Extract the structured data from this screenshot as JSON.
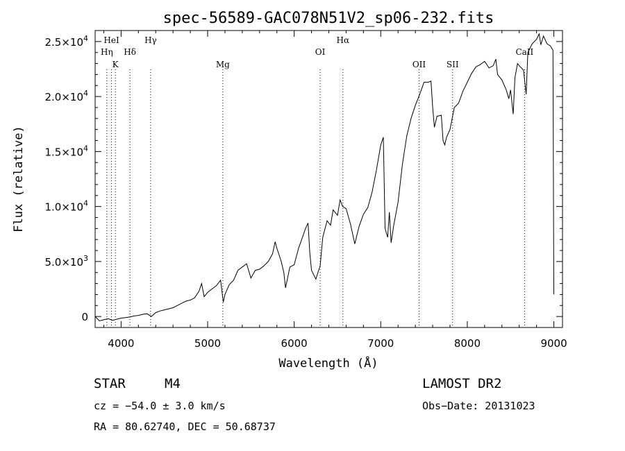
{
  "chart_data": {
    "type": "line",
    "title": "spec-56589-GAC078N51V2_sp06-232.fits",
    "xlabel": "Wavelength (Å)",
    "ylabel": "Flux (relative)",
    "xlim": [
      3700,
      9100
    ],
    "ylim": [
      -1000,
      26000
    ],
    "x_ticks": [
      {
        "value": 4000,
        "label": "4000"
      },
      {
        "value": 5000,
        "label": "5000"
      },
      {
        "value": 6000,
        "label": "6000"
      },
      {
        "value": 7000,
        "label": "7000"
      },
      {
        "value": 8000,
        "label": "8000"
      },
      {
        "value": 9000,
        "label": "9000"
      }
    ],
    "y_ticks": [
      {
        "value": 0,
        "mant": "0",
        "exp": ""
      },
      {
        "value": 5000,
        "mant": "5.0×10",
        "exp": "3"
      },
      {
        "value": 10000,
        "mant": "1.0×10",
        "exp": "4"
      },
      {
        "value": 15000,
        "mant": "1.5×10",
        "exp": "4"
      },
      {
        "value": 20000,
        "mant": "2.0×10",
        "exp": "4"
      },
      {
        "value": 25000,
        "mant": "2.5×10",
        "exp": "4"
      }
    ],
    "grid": false,
    "series": [
      {
        "color": "#000000",
        "points": [
          [
            3700,
            0
          ],
          [
            3750,
            -400
          ],
          [
            3800,
            -300
          ],
          [
            3850,
            -200
          ],
          [
            3900,
            -350
          ],
          [
            3950,
            -250
          ],
          [
            4000,
            -150
          ],
          [
            4050,
            -100
          ],
          [
            4100,
            -50
          ],
          [
            4150,
            50
          ],
          [
            4200,
            100
          ],
          [
            4250,
            200
          ],
          [
            4300,
            250
          ],
          [
            4350,
            0
          ],
          [
            4400,
            350
          ],
          [
            4450,
            500
          ],
          [
            4500,
            600
          ],
          [
            4550,
            700
          ],
          [
            4600,
            800
          ],
          [
            4650,
            1000
          ],
          [
            4700,
            1200
          ],
          [
            4750,
            1400
          ],
          [
            4800,
            1500
          ],
          [
            4850,
            1700
          ],
          [
            4900,
            2300
          ],
          [
            4930,
            3000
          ],
          [
            4960,
            1800
          ],
          [
            5000,
            2200
          ],
          [
            5050,
            2500
          ],
          [
            5100,
            2800
          ],
          [
            5150,
            3300
          ],
          [
            5180,
            1300
          ],
          [
            5200,
            2000
          ],
          [
            5250,
            2900
          ],
          [
            5300,
            3300
          ],
          [
            5350,
            4200
          ],
          [
            5400,
            4500
          ],
          [
            5450,
            4800
          ],
          [
            5500,
            3500
          ],
          [
            5550,
            4200
          ],
          [
            5600,
            4300
          ],
          [
            5650,
            4600
          ],
          [
            5700,
            5000
          ],
          [
            5750,
            5700
          ],
          [
            5780,
            6800
          ],
          [
            5800,
            6200
          ],
          [
            5850,
            5000
          ],
          [
            5880,
            4000
          ],
          [
            5900,
            2600
          ],
          [
            5950,
            4500
          ],
          [
            6000,
            4700
          ],
          [
            6050,
            6200
          ],
          [
            6100,
            7300
          ],
          [
            6130,
            8000
          ],
          [
            6160,
            8500
          ],
          [
            6180,
            5800
          ],
          [
            6200,
            4200
          ],
          [
            6250,
            3400
          ],
          [
            6300,
            4600
          ],
          [
            6330,
            7200
          ],
          [
            6380,
            8700
          ],
          [
            6420,
            8300
          ],
          [
            6450,
            9700
          ],
          [
            6500,
            9200
          ],
          [
            6530,
            10600
          ],
          [
            6560,
            10000
          ],
          [
            6600,
            9800
          ],
          [
            6650,
            8400
          ],
          [
            6700,
            6600
          ],
          [
            6750,
            8200
          ],
          [
            6800,
            9300
          ],
          [
            6850,
            9900
          ],
          [
            6900,
            11300
          ],
          [
            6950,
            13300
          ],
          [
            7000,
            15600
          ],
          [
            7030,
            16300
          ],
          [
            7050,
            8000
          ],
          [
            7080,
            7200
          ],
          [
            7100,
            9500
          ],
          [
            7120,
            6700
          ],
          [
            7150,
            8300
          ],
          [
            7200,
            10400
          ],
          [
            7250,
            13800
          ],
          [
            7300,
            16400
          ],
          [
            7350,
            18000
          ],
          [
            7400,
            19200
          ],
          [
            7450,
            20200
          ],
          [
            7500,
            21300
          ],
          [
            7550,
            21300
          ],
          [
            7580,
            21400
          ],
          [
            7600,
            19000
          ],
          [
            7620,
            17200
          ],
          [
            7650,
            18200
          ],
          [
            7700,
            18300
          ],
          [
            7720,
            16000
          ],
          [
            7740,
            15600
          ],
          [
            7760,
            16300
          ],
          [
            7800,
            17000
          ],
          [
            7850,
            19000
          ],
          [
            7900,
            19400
          ],
          [
            7950,
            20500
          ],
          [
            8000,
            21300
          ],
          [
            8050,
            22100
          ],
          [
            8100,
            22700
          ],
          [
            8150,
            22900
          ],
          [
            8200,
            23200
          ],
          [
            8250,
            22600
          ],
          [
            8300,
            22800
          ],
          [
            8330,
            23400
          ],
          [
            8350,
            22000
          ],
          [
            8400,
            21500
          ],
          [
            8450,
            20600
          ],
          [
            8480,
            19800
          ],
          [
            8500,
            20600
          ],
          [
            8530,
            18400
          ],
          [
            8550,
            21700
          ],
          [
            8580,
            23000
          ],
          [
            8600,
            22800
          ],
          [
            8650,
            22400
          ],
          [
            8680,
            20200
          ],
          [
            8700,
            24000
          ],
          [
            8750,
            24800
          ],
          [
            8800,
            25200
          ],
          [
            8830,
            25700
          ],
          [
            8850,
            24700
          ],
          [
            8880,
            25500
          ],
          [
            8920,
            24800
          ],
          [
            8960,
            24600
          ],
          [
            8990,
            24200
          ],
          [
            9000,
            2000
          ]
        ]
      }
    ],
    "line_markers": [
      {
        "x": 3835,
        "label": "Hη",
        "row": 2
      },
      {
        "x": 3889,
        "label": "HeI",
        "row": 1
      },
      {
        "x": 3934,
        "label": "K",
        "row": 3
      },
      {
        "x": 4102,
        "label": "Hδ",
        "row": 2
      },
      {
        "x": 4341,
        "label": "Hγ",
        "row": 1
      },
      {
        "x": 5175,
        "label": "Mg",
        "row": 3
      },
      {
        "x": 6300,
        "label": "OI",
        "row": 2
      },
      {
        "x": 6563,
        "label": "Hα",
        "row": 1
      },
      {
        "x": 7443,
        "label": "OII",
        "row": 3
      },
      {
        "x": 7830,
        "label": "SII",
        "row": 3
      },
      {
        "x": 8662,
        "label": "CaII",
        "row": 2
      }
    ]
  },
  "info": {
    "object_class": "STAR",
    "subclass": "M4",
    "cz": "cz = −54.0 ± 3.0 km/s",
    "coords": "RA =  80.62740, DEC =  50.68737",
    "survey": "LAMOST DR2",
    "obs_date": "Obs−Date: 20131023"
  }
}
